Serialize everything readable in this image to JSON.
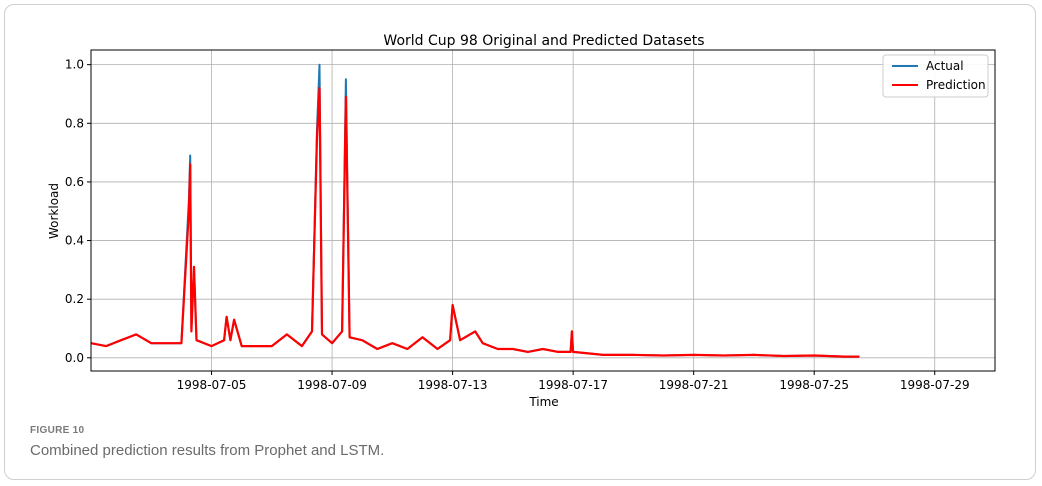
{
  "figure": {
    "label": "FIGURE 10",
    "caption": "Combined prediction results from Prophet and LSTM."
  },
  "chart_data": {
    "type": "line",
    "title": "World Cup 98 Original and Predicted Datasets",
    "xlabel": "Time",
    "ylabel": "Workload",
    "x_range": [
      "1998-07-01",
      "1998-07-31"
    ],
    "ylim": [
      -0.045,
      1.05
    ],
    "x_ticks": [
      "1998-07-05",
      "1998-07-09",
      "1998-07-13",
      "1998-07-17",
      "1998-07-21",
      "1998-07-25",
      "1998-07-29"
    ],
    "y_ticks": [
      "0.0",
      "0.2",
      "0.4",
      "0.6",
      "0.8",
      "1.0"
    ],
    "y_tick_values": [
      0.0,
      0.2,
      0.4,
      0.6,
      0.8,
      1.0
    ],
    "grid": true,
    "legend_position": "top-right",
    "series": [
      {
        "name": "Actual",
        "color": "#1f77b4",
        "points": [
          [
            "1998-07-01 00:00",
            0.05
          ],
          [
            "1998-07-01 12:00",
            0.04
          ],
          [
            "1998-07-02 00:00",
            0.06
          ],
          [
            "1998-07-02 12:00",
            0.08
          ],
          [
            "1998-07-03 00:00",
            0.05
          ],
          [
            "1998-07-03 12:00",
            0.05
          ],
          [
            "1998-07-04 00:00",
            0.05
          ],
          [
            "1998-07-04 06:00",
            0.54
          ],
          [
            "1998-07-04 07:00",
            0.69
          ],
          [
            "1998-07-04 08:00",
            0.1
          ],
          [
            "1998-07-04 10:00",
            0.31
          ],
          [
            "1998-07-04 12:00",
            0.06
          ],
          [
            "1998-07-05 00:00",
            0.04
          ],
          [
            "1998-07-05 10:00",
            0.06
          ],
          [
            "1998-07-05 12:00",
            0.14
          ],
          [
            "1998-07-05 15:00",
            0.06
          ],
          [
            "1998-07-05 18:00",
            0.13
          ],
          [
            "1998-07-06 00:00",
            0.04
          ],
          [
            "1998-07-06 12:00",
            0.04
          ],
          [
            "1998-07-07 00:00",
            0.04
          ],
          [
            "1998-07-07 12:00",
            0.08
          ],
          [
            "1998-07-08 00:00",
            0.04
          ],
          [
            "1998-07-08 08:00",
            0.09
          ],
          [
            "1998-07-08 12:00",
            0.78
          ],
          [
            "1998-07-08 14:00",
            1.0
          ],
          [
            "1998-07-08 16:00",
            0.08
          ],
          [
            "1998-07-09 00:00",
            0.05
          ],
          [
            "1998-07-09 08:00",
            0.09
          ],
          [
            "1998-07-09 11:00",
            0.95
          ],
          [
            "1998-07-09 14:00",
            0.07
          ],
          [
            "1998-07-10 00:00",
            0.06
          ],
          [
            "1998-07-10 12:00",
            0.03
          ],
          [
            "1998-07-11 00:00",
            0.05
          ],
          [
            "1998-07-11 12:00",
            0.03
          ],
          [
            "1998-07-12 00:00",
            0.07
          ],
          [
            "1998-07-12 12:00",
            0.03
          ],
          [
            "1998-07-12 22:00",
            0.06
          ],
          [
            "1998-07-13 00:00",
            0.18
          ],
          [
            "1998-07-13 06:00",
            0.06
          ],
          [
            "1998-07-13 18:00",
            0.09
          ],
          [
            "1998-07-14 00:00",
            0.05
          ],
          [
            "1998-07-14 12:00",
            0.03
          ],
          [
            "1998-07-15 00:00",
            0.03
          ],
          [
            "1998-07-15 12:00",
            0.02
          ],
          [
            "1998-07-16 00:00",
            0.03
          ],
          [
            "1998-07-16 12:00",
            0.02
          ],
          [
            "1998-07-16 22:00",
            0.02
          ],
          [
            "1998-07-16 23:00",
            0.09
          ],
          [
            "1998-07-17 00:00",
            0.02
          ],
          [
            "1998-07-18 00:00",
            0.01
          ],
          [
            "1998-07-19 00:00",
            0.01
          ],
          [
            "1998-07-20 00:00",
            0.008
          ],
          [
            "1998-07-21 00:00",
            0.01
          ],
          [
            "1998-07-22 00:00",
            0.008
          ],
          [
            "1998-07-23 00:00",
            0.01
          ],
          [
            "1998-07-24 00:00",
            0.006
          ],
          [
            "1998-07-25 00:00",
            0.008
          ],
          [
            "1998-07-26 00:00",
            0.004
          ],
          [
            "1998-07-26 12:00",
            0.004
          ]
        ]
      },
      {
        "name": "Prediction",
        "color": "#ff0000",
        "points": [
          [
            "1998-07-01 00:00",
            0.05
          ],
          [
            "1998-07-01 12:00",
            0.04
          ],
          [
            "1998-07-02 00:00",
            0.06
          ],
          [
            "1998-07-02 12:00",
            0.08
          ],
          [
            "1998-07-03 00:00",
            0.05
          ],
          [
            "1998-07-03 12:00",
            0.05
          ],
          [
            "1998-07-04 00:00",
            0.05
          ],
          [
            "1998-07-04 06:00",
            0.5
          ],
          [
            "1998-07-04 07:00",
            0.66
          ],
          [
            "1998-07-04 08:00",
            0.09
          ],
          [
            "1998-07-04 10:00",
            0.31
          ],
          [
            "1998-07-04 12:00",
            0.06
          ],
          [
            "1998-07-05 00:00",
            0.04
          ],
          [
            "1998-07-05 10:00",
            0.06
          ],
          [
            "1998-07-05 12:00",
            0.14
          ],
          [
            "1998-07-05 15:00",
            0.06
          ],
          [
            "1998-07-05 18:00",
            0.13
          ],
          [
            "1998-07-06 00:00",
            0.04
          ],
          [
            "1998-07-06 12:00",
            0.04
          ],
          [
            "1998-07-07 00:00",
            0.04
          ],
          [
            "1998-07-07 12:00",
            0.08
          ],
          [
            "1998-07-08 00:00",
            0.04
          ],
          [
            "1998-07-08 08:00",
            0.09
          ],
          [
            "1998-07-08 12:00",
            0.75
          ],
          [
            "1998-07-08 14:00",
            0.92
          ],
          [
            "1998-07-08 16:00",
            0.08
          ],
          [
            "1998-07-09 00:00",
            0.05
          ],
          [
            "1998-07-09 08:00",
            0.09
          ],
          [
            "1998-07-09 11:00",
            0.89
          ],
          [
            "1998-07-09 14:00",
            0.07
          ],
          [
            "1998-07-10 00:00",
            0.06
          ],
          [
            "1998-07-10 12:00",
            0.03
          ],
          [
            "1998-07-11 00:00",
            0.05
          ],
          [
            "1998-07-11 12:00",
            0.03
          ],
          [
            "1998-07-12 00:00",
            0.07
          ],
          [
            "1998-07-12 12:00",
            0.03
          ],
          [
            "1998-07-12 22:00",
            0.06
          ],
          [
            "1998-07-13 00:00",
            0.18
          ],
          [
            "1998-07-13 06:00",
            0.06
          ],
          [
            "1998-07-13 18:00",
            0.09
          ],
          [
            "1998-07-14 00:00",
            0.05
          ],
          [
            "1998-07-14 12:00",
            0.03
          ],
          [
            "1998-07-15 00:00",
            0.03
          ],
          [
            "1998-07-15 12:00",
            0.02
          ],
          [
            "1998-07-16 00:00",
            0.03
          ],
          [
            "1998-07-16 12:00",
            0.02
          ],
          [
            "1998-07-16 22:00",
            0.02
          ],
          [
            "1998-07-16 23:00",
            0.09
          ],
          [
            "1998-07-17 00:00",
            0.02
          ],
          [
            "1998-07-18 00:00",
            0.01
          ],
          [
            "1998-07-19 00:00",
            0.01
          ],
          [
            "1998-07-20 00:00",
            0.008
          ],
          [
            "1998-07-21 00:00",
            0.01
          ],
          [
            "1998-07-22 00:00",
            0.008
          ],
          [
            "1998-07-23 00:00",
            0.01
          ],
          [
            "1998-07-24 00:00",
            0.006
          ],
          [
            "1998-07-25 00:00",
            0.008
          ],
          [
            "1998-07-26 00:00",
            0.004
          ],
          [
            "1998-07-26 12:00",
            0.004
          ]
        ]
      }
    ]
  }
}
